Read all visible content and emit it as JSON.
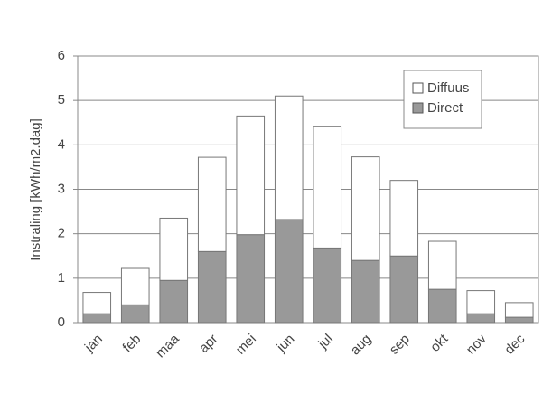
{
  "chart_data": {
    "type": "stacked-bar",
    "y_label": "Instraling [kWh/m2.dag]",
    "categories": [
      "jan",
      "feb",
      "maa",
      "apr",
      "mei",
      "jun",
      "jul",
      "aug",
      "sep",
      "okt",
      "nov",
      "dec"
    ],
    "series": [
      {
        "name": "Direct",
        "color": "#999999",
        "values": [
          0.2,
          0.4,
          0.95,
          1.6,
          1.98,
          2.32,
          1.68,
          1.4,
          1.5,
          0.75,
          0.2,
          0.12
        ]
      },
      {
        "name": "Diffuus",
        "color": "#ffffff",
        "values": [
          0.48,
          0.82,
          1.4,
          2.12,
          2.67,
          2.78,
          2.74,
          2.33,
          1.7,
          1.08,
          0.52,
          0.33
        ]
      }
    ],
    "ylim": [
      0,
      6
    ],
    "yticks": [
      0,
      1,
      2,
      3,
      4,
      5,
      6
    ],
    "grid": true,
    "legend": "upper right"
  }
}
